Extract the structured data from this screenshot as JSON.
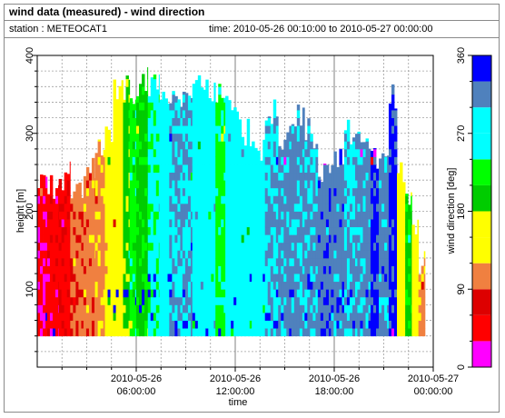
{
  "header": {
    "title": "wind data (measured) - wind direction",
    "station_text": "station : METEOCAT1",
    "period_text": "time: 2010-05-26 00:10:00 to 2010-05-27 00:00:00"
  },
  "chart_data": {
    "type": "heatmap",
    "title": "wind data (measured) - wind direction",
    "xlabel": "time",
    "ylabel": "height [m]",
    "x_unit": "hours since 2010-05-26 00:00:00",
    "x_ticks": [
      {
        "value": 6,
        "line1": "2010-05-26",
        "line2": "06:00:00"
      },
      {
        "value": 12,
        "line1": "2010-05-26",
        "line2": "12:00:00"
      },
      {
        "value": 18,
        "line1": "2010-05-26",
        "line2": "18:00:00"
      },
      {
        "value": 24,
        "line1": "2010-05-27",
        "line2": "00:00:00"
      }
    ],
    "xlim": [
      0,
      24
    ],
    "ylim": [
      0,
      400
    ],
    "y_ticks": [
      100,
      200,
      300,
      400
    ],
    "height_range_measured": [
      40,
      360
    ],
    "grid": true,
    "colorbar": {
      "label": "wind direction [deg]",
      "ticks": [
        0,
        90,
        180,
        270,
        360
      ],
      "bins": [
        {
          "from": 0,
          "to": 30,
          "color": "#ff00ff"
        },
        {
          "from": 30,
          "to": 60,
          "color": "#ff0000"
        },
        {
          "from": 60,
          "to": 90,
          "color": "#dd0000"
        },
        {
          "from": 90,
          "to": 120,
          "color": "#f08040"
        },
        {
          "from": 120,
          "to": 150,
          "color": "#ffff00"
        },
        {
          "from": 150,
          "to": 180,
          "color": "#ffff00"
        },
        {
          "from": 180,
          "to": 210,
          "color": "#00cc00"
        },
        {
          "from": 210,
          "to": 240,
          "color": "#00ff00"
        },
        {
          "from": 240,
          "to": 270,
          "color": "#00ffff"
        },
        {
          "from": 270,
          "to": 300,
          "color": "#00ffff"
        },
        {
          "from": 300,
          "to": 330,
          "color": "#4f81bd"
        },
        {
          "from": 330,
          "to": 360,
          "color": "#0000ff"
        }
      ]
    },
    "segments": [
      {
        "t0": 0.0,
        "t1": 0.6,
        "top": 240,
        "dir": 40
      },
      {
        "t0": 0.6,
        "t1": 1.3,
        "top": 230,
        "dir": 45
      },
      {
        "t0": 1.3,
        "t1": 2.0,
        "top": 245,
        "dir": 50
      },
      {
        "t0": 2.0,
        "t1": 2.8,
        "top": 235,
        "dir": 100
      },
      {
        "t0": 2.8,
        "t1": 3.5,
        "top": 255,
        "dir": 105
      },
      {
        "t0": 3.5,
        "t1": 4.1,
        "top": 285,
        "dir": 110
      },
      {
        "t0": 4.1,
        "t1": 4.6,
        "top": 300,
        "dir": 140
      },
      {
        "t0": 4.6,
        "t1": 5.2,
        "top": 355,
        "dir": 145
      },
      {
        "t0": 5.2,
        "t1": 5.6,
        "top": 355,
        "dir": 190
      },
      {
        "t0": 5.6,
        "t1": 6.0,
        "top": 350,
        "dir": 225
      },
      {
        "t0": 6.0,
        "t1": 6.7,
        "top": 365,
        "dir": 200
      },
      {
        "t0": 6.7,
        "t1": 7.4,
        "top": 365,
        "dir": 250
      },
      {
        "t0": 7.4,
        "t1": 8.0,
        "top": 355,
        "dir": 280
      },
      {
        "t0": 8.0,
        "t1": 8.8,
        "top": 335,
        "dir": 300
      },
      {
        "t0": 8.8,
        "t1": 9.4,
        "top": 365,
        "dir": 305
      },
      {
        "t0": 9.4,
        "t1": 10.2,
        "top": 365,
        "dir": 275
      },
      {
        "t0": 10.2,
        "t1": 10.8,
        "top": 360,
        "dir": 260
      },
      {
        "t0": 10.8,
        "t1": 11.4,
        "top": 345,
        "dir": 230
      },
      {
        "t0": 11.4,
        "t1": 12.2,
        "top": 340,
        "dir": 265
      },
      {
        "t0": 12.2,
        "t1": 13.0,
        "top": 300,
        "dir": 260
      },
      {
        "t0": 13.0,
        "t1": 13.8,
        "top": 280,
        "dir": 275
      },
      {
        "t0": 13.8,
        "t1": 14.6,
        "top": 325,
        "dir": 300
      },
      {
        "t0": 14.6,
        "t1": 15.4,
        "top": 295,
        "dir": 310
      },
      {
        "t0": 15.4,
        "t1": 16.2,
        "top": 320,
        "dir": 310
      },
      {
        "t0": 16.2,
        "t1": 17.0,
        "top": 300,
        "dir": 305
      },
      {
        "t0": 17.0,
        "t1": 17.8,
        "top": 255,
        "dir": 320
      },
      {
        "t0": 17.8,
        "t1": 18.6,
        "top": 270,
        "dir": 315
      },
      {
        "t0": 18.6,
        "t1": 19.4,
        "top": 300,
        "dir": 300
      },
      {
        "t0": 19.4,
        "t1": 20.2,
        "top": 285,
        "dir": 310
      },
      {
        "t0": 20.2,
        "t1": 20.7,
        "top": 265,
        "dir": 340
      },
      {
        "t0": 20.7,
        "t1": 21.3,
        "top": 275,
        "dir": 310
      },
      {
        "t0": 21.3,
        "t1": 21.8,
        "top": 345,
        "dir": 340
      },
      {
        "t0": 21.8,
        "t1": 22.3,
        "top": 250,
        "dir": 150
      },
      {
        "t0": 22.3,
        "t1": 22.7,
        "top": 215,
        "dir": 200
      },
      {
        "t0": 22.7,
        "t1": 23.1,
        "top": 170,
        "dir": 140
      },
      {
        "t0": 23.1,
        "t1": 23.5,
        "top": 130,
        "dir": 110
      }
    ]
  }
}
